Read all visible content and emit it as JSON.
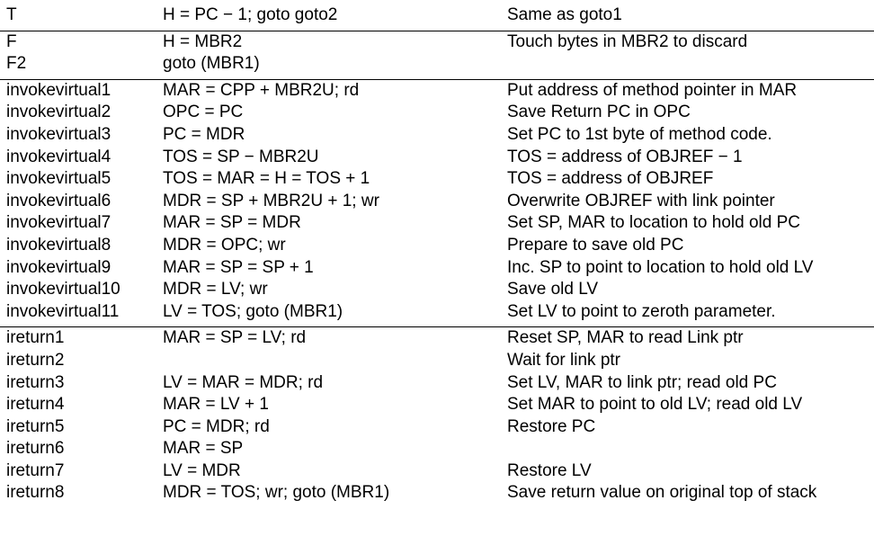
{
  "groups": [
    {
      "rows": [
        {
          "label": "T",
          "op": "H = PC − 1; goto goto2",
          "comment": "Same as goto1"
        }
      ]
    },
    {
      "rows": [
        {
          "label": "F",
          "op": "H = MBR2",
          "comment": "Touch bytes in MBR2 to discard"
        },
        {
          "label": "F2",
          "op": "goto (MBR1)",
          "comment": ""
        }
      ]
    },
    {
      "rows": [
        {
          "label": "invokevirtual1",
          "op": "MAR = CPP + MBR2U; rd",
          "comment": "Put address of method pointer in MAR"
        },
        {
          "label": "invokevirtual2",
          "op": "OPC = PC",
          "comment": "Save Return PC in OPC"
        },
        {
          "label": "invokevirtual3",
          "op": "PC = MDR",
          "comment": "Set PC to 1st byte of method code."
        },
        {
          "label": "invokevirtual4",
          "op": "TOS = SP − MBR2U",
          "comment": "TOS = address of OBJREF − 1"
        },
        {
          "label": "invokevirtual5",
          "op": "TOS = MAR = H = TOS + 1",
          "comment": "TOS = address of OBJREF"
        },
        {
          "label": "invokevirtual6",
          "op": "MDR = SP + MBR2U + 1; wr",
          "comment": "Overwrite OBJREF with link pointer"
        },
        {
          "label": "invokevirtual7",
          "op": "MAR = SP = MDR",
          "comment": "Set SP, MAR to location to hold old PC"
        },
        {
          "label": "invokevirtual8",
          "op": "MDR = OPC; wr",
          "comment": "Prepare to save old PC"
        },
        {
          "label": "invokevirtual9",
          "op": "MAR = SP = SP + 1",
          "comment": "Inc. SP to point to location to hold old LV"
        },
        {
          "label": "invokevirtual10",
          "op": "MDR = LV; wr",
          "comment": "Save old LV"
        },
        {
          "label": "invokevirtual11",
          "op": "LV = TOS; goto (MBR1)",
          "comment": "Set LV to point to zeroth parameter."
        }
      ]
    },
    {
      "rows": [
        {
          "label": "ireturn1",
          "op": "MAR = SP = LV; rd",
          "comment": "Reset SP, MAR to read Link ptr"
        },
        {
          "label": "ireturn2",
          "op": "",
          "comment": "Wait for link ptr"
        },
        {
          "label": "ireturn3",
          "op": "LV = MAR = MDR; rd",
          "comment": "Set LV, MAR to link ptr; read old PC"
        },
        {
          "label": "ireturn4",
          "op": "MAR = LV + 1",
          "comment": "Set MAR to point to old LV; read old LV"
        },
        {
          "label": "ireturn5",
          "op": "PC = MDR; rd",
          "comment": "Restore PC"
        },
        {
          "label": "ireturn6",
          "op": "MAR = SP",
          "comment": ""
        },
        {
          "label": "ireturn7",
          "op": "LV = MDR",
          "comment": "Restore LV"
        },
        {
          "label": "ireturn8",
          "op": "MDR = TOS; wr; goto (MBR1)",
          "comment": "Save return value on original top of stack"
        }
      ]
    }
  ]
}
